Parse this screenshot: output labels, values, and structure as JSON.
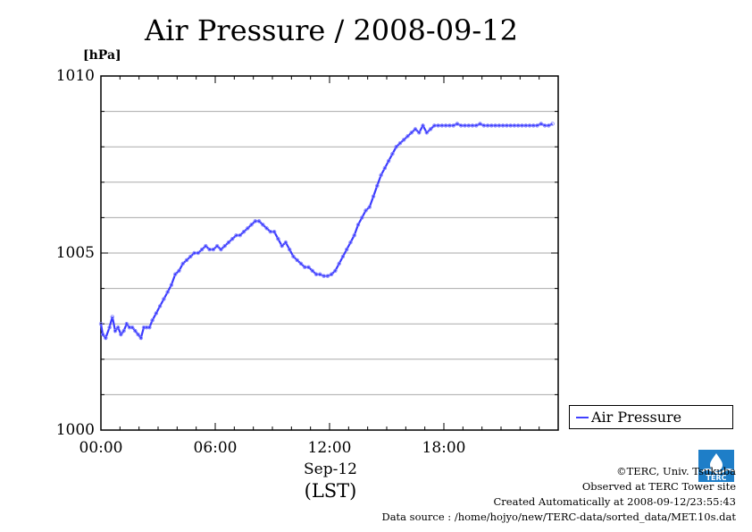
{
  "title": "Air Pressure / 2008-09-12",
  "colors": {
    "series": "#3a3aff",
    "points": "#8080ff",
    "grid": "#aaaaaa",
    "logo": "#1e7ec8"
  },
  "credits": {
    "copyright": "©TERC, Univ. Tsukuba",
    "observed": "Observed at TERC Tower site",
    "created": "Created Automatically at 2008-09-12/23:55:43",
    "source": "Data source : /home/hojyo/new/TERC-data/sorted_data/MET.10s.dat"
  },
  "logo": {
    "text": "TERC",
    "icon": "terc-logo-icon"
  },
  "chart_data": {
    "type": "line",
    "title": "Air Pressure / 2008-09-12",
    "ylabel": "[hPa]",
    "xlabel_date": "Sep-12",
    "xlabel": "(LST)",
    "xlim": [
      0,
      24
    ],
    "ylim": [
      1000,
      1010
    ],
    "yticks": [
      1000,
      1005,
      1010
    ],
    "y_minor_step": 1,
    "xtick_labels": [
      "00:00",
      "06:00",
      "12:00",
      "18:00"
    ],
    "xticks": [
      0,
      6,
      12,
      18
    ],
    "grid": true,
    "legend": {
      "position": "right-bottom-outside",
      "entries": [
        "Air Pressure"
      ]
    },
    "series": [
      {
        "name": "Air Pressure",
        "x": [
          0,
          0.1,
          0.25,
          0.45,
          0.6,
          0.75,
          0.9,
          1.05,
          1.2,
          1.35,
          1.5,
          1.65,
          1.8,
          1.95,
          2.1,
          2.25,
          2.4,
          2.55,
          2.7,
          2.9,
          3.1,
          3.3,
          3.5,
          3.7,
          3.9,
          4.1,
          4.3,
          4.5,
          4.7,
          4.9,
          5.1,
          5.3,
          5.5,
          5.7,
          5.9,
          6.1,
          6.3,
          6.5,
          6.7,
          6.9,
          7.1,
          7.3,
          7.5,
          7.7,
          7.9,
          8.1,
          8.3,
          8.5,
          8.7,
          8.9,
          9.1,
          9.3,
          9.5,
          9.7,
          9.9,
          10.1,
          10.3,
          10.5,
          10.7,
          10.9,
          11.1,
          11.3,
          11.5,
          11.7,
          11.9,
          12.1,
          12.3,
          12.5,
          12.7,
          12.9,
          13.1,
          13.3,
          13.5,
          13.7,
          13.9,
          14.1,
          14.3,
          14.5,
          14.7,
          14.9,
          15.1,
          15.3,
          15.5,
          15.7,
          15.9,
          16.1,
          16.3,
          16.5,
          16.7,
          16.9,
          17.1,
          17.3,
          17.5,
          17.7,
          17.9,
          18.1,
          18.3,
          18.5,
          18.7,
          18.9,
          19.1,
          19.3,
          19.5,
          19.7,
          19.9,
          20.1,
          20.3,
          20.5,
          20.7,
          20.9,
          21.1,
          21.3,
          21.5,
          21.7,
          21.9,
          22.1,
          22.3,
          22.5,
          22.7,
          22.9,
          23.1,
          23.3,
          23.5,
          23.7
        ],
        "y": [
          1003.0,
          1002.7,
          1002.6,
          1002.9,
          1003.2,
          1002.8,
          1002.9,
          1002.7,
          1002.8,
          1003.0,
          1002.9,
          1002.9,
          1002.8,
          1002.7,
          1002.6,
          1002.9,
          1002.9,
          1002.9,
          1003.1,
          1003.3,
          1003.5,
          1003.7,
          1003.9,
          1004.1,
          1004.4,
          1004.5,
          1004.7,
          1004.8,
          1004.9,
          1005.0,
          1005.0,
          1005.1,
          1005.2,
          1005.1,
          1005.1,
          1005.2,
          1005.1,
          1005.2,
          1005.3,
          1005.4,
          1005.5,
          1005.5,
          1005.6,
          1005.7,
          1005.8,
          1005.9,
          1005.9,
          1005.8,
          1005.7,
          1005.6,
          1005.6,
          1005.4,
          1005.2,
          1005.3,
          1005.1,
          1004.9,
          1004.8,
          1004.7,
          1004.6,
          1004.6,
          1004.5,
          1004.4,
          1004.4,
          1004.35,
          1004.35,
          1004.4,
          1004.5,
          1004.7,
          1004.9,
          1005.1,
          1005.3,
          1005.5,
          1005.8,
          1006.0,
          1006.2,
          1006.3,
          1006.6,
          1006.9,
          1007.2,
          1007.4,
          1007.6,
          1007.8,
          1008.0,
          1008.1,
          1008.2,
          1008.3,
          1008.4,
          1008.5,
          1008.4,
          1008.6,
          1008.4,
          1008.5,
          1008.6,
          1008.6,
          1008.6,
          1008.6,
          1008.6,
          1008.6,
          1008.65,
          1008.6,
          1008.6,
          1008.6,
          1008.6,
          1008.6,
          1008.65,
          1008.6,
          1008.6,
          1008.6,
          1008.6,
          1008.6,
          1008.6,
          1008.6,
          1008.6,
          1008.6,
          1008.6,
          1008.6,
          1008.6,
          1008.6,
          1008.6,
          1008.6,
          1008.65,
          1008.6,
          1008.6,
          1008.65
        ]
      }
    ]
  }
}
